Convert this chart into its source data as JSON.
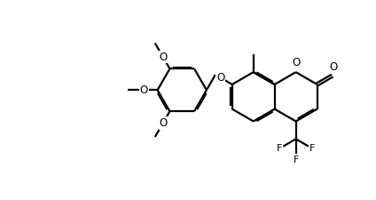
{
  "bg": "#ffffff",
  "lc": "#000000",
  "lw": 1.6,
  "fs": 7.5,
  "dbo": 0.045,
  "figsize": [
    4.24,
    2.25
  ],
  "dpi": 100,
  "xlim": [
    0,
    11.5
  ],
  "ylim": [
    0,
    6.1
  ]
}
